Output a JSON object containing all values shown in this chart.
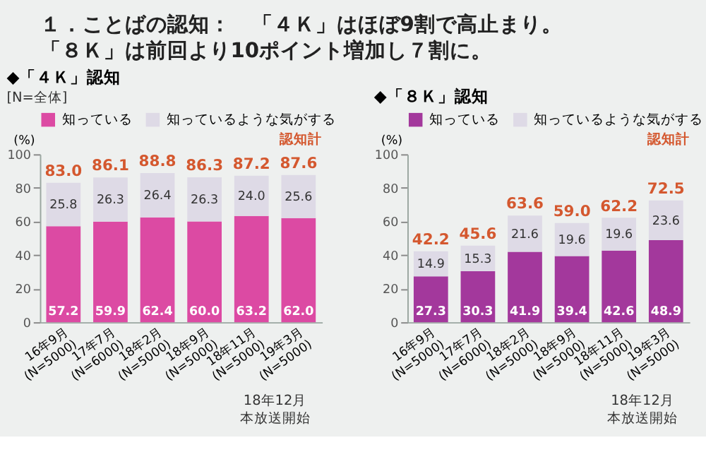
{
  "chart_data": [
    {
      "type": "bar",
      "stacked": true,
      "title": "◆「４Ｋ」認知",
      "subtitle": "[N=全体]",
      "ylabel": "(%)",
      "categories": [
        "16年9月 (N=5000)",
        "17年7月 (N=6000)",
        "18年2月 (N=5000)",
        "18年9月 (N=5000)",
        "18年11月 (N=5000)",
        "19年3月 (N=5000)"
      ],
      "series": [
        {
          "name": "知っている",
          "color": "#dc4aa3",
          "values": [
            57.2,
            59.9,
            62.4,
            60.0,
            63.2,
            62.0
          ],
          "value_labels": [
            "57.2",
            "59.9",
            "62.4",
            "60.0",
            "63.2",
            "62.0"
          ]
        },
        {
          "name": "知っているような気がする",
          "color": "#dedae6",
          "values": [
            25.8,
            26.3,
            26.4,
            26.3,
            24.0,
            25.6
          ],
          "value_labels": [
            "25.8",
            "26.3",
            "26.4",
            "26.3",
            "24.0",
            "25.6"
          ]
        }
      ],
      "totals": [
        "83.0",
        "86.1",
        "88.8",
        "86.3",
        "87.2",
        "87.6"
      ],
      "ylim": [
        0,
        100
      ],
      "yticks": [
        0,
        20,
        40,
        60,
        80,
        100
      ],
      "legend": "top",
      "annotations": [
        "１．ことばの認知：　「４Ｋ」はほぼ9割で高止まり。",
        "「８Ｋ」は前回より10ポイント増加し７割に。",
        "認知計",
        "18年12月",
        "本放送開始"
      ]
    },
    {
      "type": "bar",
      "stacked": true,
      "title": "◆「８Ｋ」認知",
      "ylabel": "(%)",
      "categories": [
        "16年9月 (N=5000)",
        "17年7月 (N=6000)",
        "18年2月 (N=5000)",
        "18年9月 (N=5000)",
        "18年11月 (N=5000)",
        "19年3月 (N=5000)"
      ],
      "series": [
        {
          "name": "知っている",
          "color": "#a3389c",
          "values": [
            27.3,
            30.3,
            41.9,
            39.4,
            42.6,
            48.9
          ],
          "value_labels": [
            "27.3",
            "30.3",
            "41.9",
            "39.4",
            "42.6",
            "48.9"
          ]
        },
        {
          "name": "知っているような気がする",
          "color": "#dedae6",
          "values": [
            14.9,
            15.3,
            21.6,
            19.6,
            19.6,
            23.6
          ],
          "value_labels": [
            "14.9",
            "15.3",
            "21.6",
            "19.6",
            "19.6",
            "23.6"
          ]
        }
      ],
      "totals": [
        "42.2",
        "45.6",
        "63.6",
        "59.0",
        "62.2",
        "72.5"
      ],
      "ylim": [
        0,
        100
      ],
      "yticks": [
        0,
        20,
        40,
        60,
        80,
        100
      ],
      "legend": "top",
      "annotations": [
        "認知計",
        "18年12月",
        "本放送開始"
      ]
    }
  ]
}
